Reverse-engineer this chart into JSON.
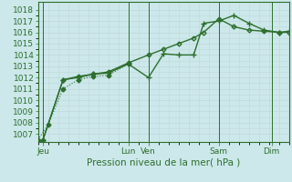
{
  "background_color": "#cce8ea",
  "grid_color": "#c0d8da",
  "line_color": "#2d6e2d",
  "xlabel": "Pression niveau de la mer( hPa )",
  "xlabel_fontsize": 7.5,
  "ytick_fontsize": 6.5,
  "xtick_fontsize": 6.5,
  "yticks": [
    1007,
    1008,
    1009,
    1010,
    1011,
    1012,
    1013,
    1014,
    1015,
    1016,
    1017,
    1018
  ],
  "ylim": [
    1006.3,
    1018.7
  ],
  "xlim": [
    0,
    100
  ],
  "xtick_positions": [
    2,
    36,
    44,
    72,
    93
  ],
  "xtick_labels": [
    "Jeu",
    "Lun",
    "Ven",
    "Sam",
    "Dim"
  ],
  "vline_positions": [
    2,
    36,
    44,
    72,
    93
  ],
  "series1": {
    "x": [
      0,
      4,
      10,
      16,
      22,
      28,
      36
    ],
    "y": [
      1006.5,
      1007.8,
      1011.0,
      1011.8,
      1012.1,
      1012.2,
      1013.2
    ],
    "marker": "D",
    "markersize": 2.5,
    "linewidth": 0.8,
    "linestyle": ":"
  },
  "series2": {
    "x": [
      2,
      10,
      16,
      22,
      28,
      36,
      44,
      50,
      56,
      62,
      66,
      72,
      78,
      84,
      90,
      96,
      100
    ],
    "y": [
      1006.5,
      1011.8,
      1012.0,
      1012.3,
      1012.4,
      1013.2,
      1012.0,
      1014.1,
      1014.0,
      1014.0,
      1016.8,
      1017.0,
      1017.5,
      1016.8,
      1016.2,
      1016.0,
      1016.1
    ],
    "marker": "+",
    "markersize": 4,
    "linewidth": 1.0,
    "linestyle": "-"
  },
  "series3": {
    "x": [
      2,
      10,
      16,
      22,
      28,
      36,
      44,
      50,
      56,
      62,
      66,
      72,
      78,
      84,
      90,
      96,
      100
    ],
    "y": [
      1006.5,
      1011.8,
      1012.1,
      1012.3,
      1012.5,
      1013.3,
      1014.0,
      1014.5,
      1015.0,
      1015.5,
      1016.0,
      1017.2,
      1016.5,
      1016.2,
      1016.1,
      1016.0,
      1016.0
    ],
    "marker": "D",
    "markersize": 2.5,
    "linewidth": 1.0,
    "linestyle": "-"
  }
}
